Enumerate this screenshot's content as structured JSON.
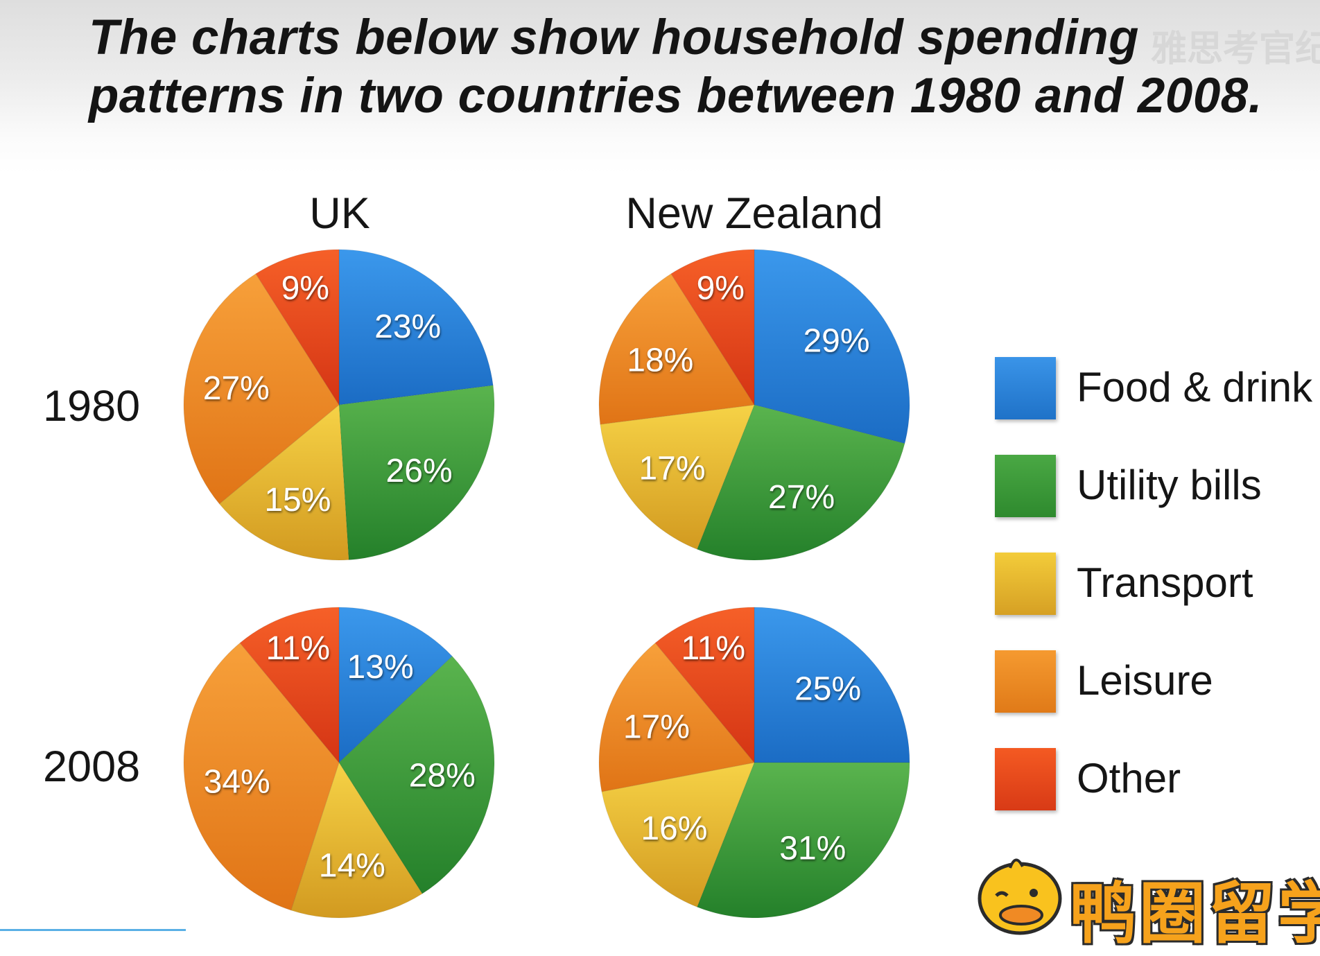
{
  "title": {
    "line1": "The charts below show household spending",
    "line2": "patterns in two countries between 1980 and 2008."
  },
  "watermark_text": "雅思考官纪",
  "logo_text": "鸭圈留学",
  "chart_data": {
    "type": "pie",
    "title": "The charts below show household spending patterns in two countries between 1980 and 2008.",
    "columns": [
      "UK",
      "New Zealand"
    ],
    "rows": [
      "1980",
      "2008"
    ],
    "categories": [
      "Food & drink",
      "Utility bills",
      "Transport",
      "Leisure",
      "Other"
    ],
    "colors": {
      "Food & drink": "#2a86de",
      "Utility bills": "#3c9a38",
      "Transport": "#e4b42c",
      "Leisure": "#ee8a22",
      "Other": "#e8451c"
    },
    "legend_position": "right",
    "charts": [
      {
        "country": "UK",
        "year": "1980",
        "values": [
          23,
          26,
          15,
          27,
          9
        ],
        "labels": [
          "23%",
          "26%",
          "15%",
          "27%",
          "9%"
        ]
      },
      {
        "country": "New Zealand",
        "year": "1980",
        "values": [
          29,
          27,
          17,
          18,
          9
        ],
        "labels": [
          "29%",
          "27%",
          "17%",
          "18%",
          "9%"
        ]
      },
      {
        "country": "UK",
        "year": "2008",
        "values": [
          13,
          28,
          14,
          34,
          11
        ],
        "labels": [
          "13%",
          "28%",
          "14%",
          "34%",
          "11%"
        ]
      },
      {
        "country": "New Zealand",
        "year": "2008",
        "values": [
          25,
          31,
          16,
          17,
          11
        ],
        "labels": [
          "25%",
          "31%",
          "16%",
          "17%",
          "11%"
        ]
      }
    ]
  }
}
